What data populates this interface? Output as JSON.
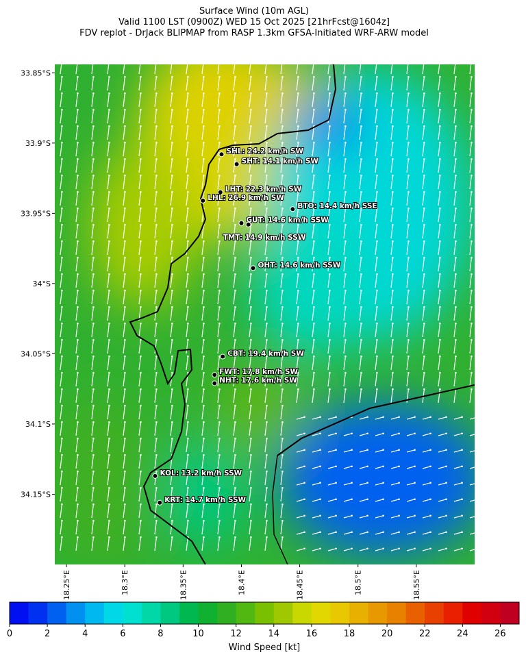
{
  "header": {
    "title_lines": [
      "Surface Wind (10m AGL)",
      "Valid 1100 LST (0900Z) WED 15 Oct 2025 [21hrFcst@1604z]",
      "FDV replot - DrJack BLIPMAP from RASP 1.3km GFSA-Initiated WRF-ARW model"
    ]
  },
  "map": {
    "xlim": [
      18.24,
      18.6
    ],
    "ylim": [
      -34.2,
      -33.844
    ],
    "xticks": [
      {
        "value": 18.25,
        "label": "18.25°E"
      },
      {
        "value": 18.3,
        "label": "18.3°E"
      },
      {
        "value": 18.35,
        "label": "18.35°E"
      },
      {
        "value": 18.4,
        "label": "18.4°E"
      },
      {
        "value": 18.45,
        "label": "18.45°E"
      },
      {
        "value": 18.5,
        "label": "18.5°E"
      },
      {
        "value": 18.55,
        "label": "18.55°E"
      }
    ],
    "yticks": [
      {
        "value": -33.85,
        "label": "33.85°S"
      },
      {
        "value": -33.9,
        "label": "33.9°S"
      },
      {
        "value": -33.95,
        "label": "33.95°S"
      },
      {
        "value": -34,
        "label": "34°S"
      },
      {
        "value": -34.05,
        "label": "34.05°S"
      },
      {
        "value": -34.1,
        "label": "34.1°S"
      },
      {
        "value": -34.15,
        "label": "34.15°S"
      }
    ],
    "stations": [
      {
        "label": "SHL: 24.2 km/h SW",
        "lon": 18.383,
        "lat": -33.908
      },
      {
        "label": "SHT: 14.1 km/h SW",
        "lon": 18.396,
        "lat": -33.915
      },
      {
        "label": "LHT: 22.3 km/h SW",
        "lon": 18.382,
        "lat": -33.935
      },
      {
        "label": "LHL: 26.9 km/h SW",
        "lon": 18.367,
        "lat": -33.941
      },
      {
        "label": "BTO: 14.4 km/h SSE",
        "lon": 18.444,
        "lat": -33.947
      },
      {
        "label": "GUT: 14.6 km/h SSW",
        "lon": 18.4,
        "lat": -33.957
      },
      {
        "label": "TMT: 14.9 km/h SSW",
        "lon": 18.406,
        "lat": -33.958
      },
      {
        "label": "OHT: 14.6 km/h SSW",
        "lon": 18.41,
        "lat": -33.989
      },
      {
        "label": "CBT: 19.4 km/h SW",
        "lon": 18.384,
        "lat": -34.052
      },
      {
        "label": "FWT: 17.8 km/h SW",
        "lon": 18.377,
        "lat": -34.065
      },
      {
        "label": "NHT: 17.6 km/h SW",
        "lon": 18.377,
        "lat": -34.071
      },
      {
        "label": "KOL: 13.2 km/h SSW",
        "lon": 18.326,
        "lat": -34.137
      },
      {
        "label": "KRT: 14.7 km/h SSW",
        "lon": 18.33,
        "lat": -34.156
      }
    ]
  },
  "colorbar": {
    "label": "Wind Speed [kt]",
    "clim": [
      0,
      27
    ],
    "ticks": [
      0,
      2,
      4,
      6,
      8,
      10,
      12,
      14,
      16,
      18,
      20,
      22,
      24,
      26
    ],
    "colors": [
      "#0010f0",
      "#0030f0",
      "#0060f0",
      "#0090f0",
      "#00b8f0",
      "#00d8e8",
      "#00e0d0",
      "#00d8a8",
      "#00c880",
      "#00b850",
      "#10b030",
      "#30b020",
      "#50b810",
      "#78c000",
      "#a0c800",
      "#c8d800",
      "#e0d800",
      "#e8c800",
      "#e8b000",
      "#e89800",
      "#e88000",
      "#e86000",
      "#e84000",
      "#e82000",
      "#e00000",
      "#d00010",
      "#c00020"
    ]
  }
}
